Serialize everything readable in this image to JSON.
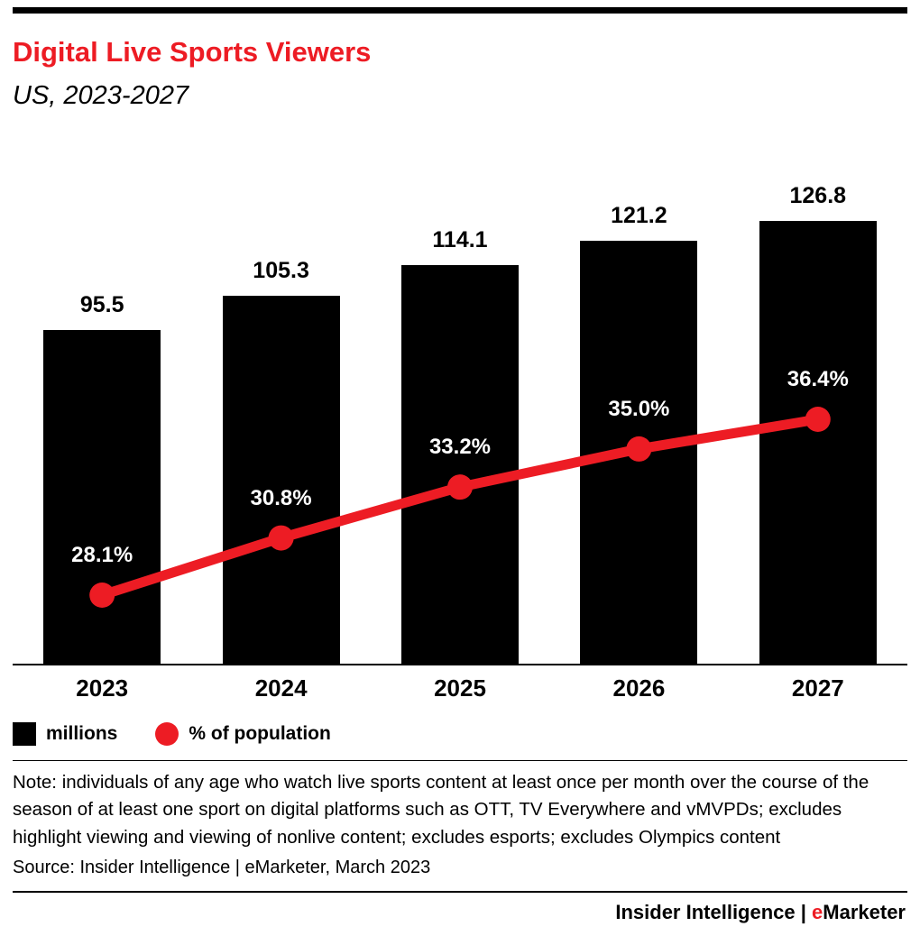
{
  "header": {
    "title": "Digital Live Sports Viewers",
    "subtitle": "US, 2023-2027"
  },
  "chart_data": {
    "type": "bar",
    "categories": [
      "2023",
      "2024",
      "2025",
      "2026",
      "2027"
    ],
    "series": [
      {
        "name": "millions",
        "type": "bar",
        "values": [
          95.5,
          105.3,
          114.1,
          121.2,
          126.8
        ],
        "color": "#000000"
      },
      {
        "name": "% of population",
        "type": "line",
        "values": [
          28.1,
          30.8,
          33.2,
          35.0,
          36.4
        ],
        "color": "#ed1c24"
      }
    ],
    "bar_labels": [
      "95.5",
      "105.3",
      "114.1",
      "121.2",
      "126.8"
    ],
    "line_labels": [
      "28.1%",
      "30.8%",
      "33.2%",
      "35.0%",
      "36.4%"
    ],
    "title": "Digital Live Sports Viewers",
    "subtitle": "US, 2023-2027",
    "xlabel": "",
    "ylabel": "",
    "grid": false,
    "legend_position": "bottom-left"
  },
  "legend": [
    {
      "label": "millions",
      "swatch": "square",
      "color": "#000000"
    },
    {
      "label": "% of population",
      "swatch": "circle",
      "color": "#ed1c24"
    }
  ],
  "note": "Note: individuals of any age who watch live sports content at least once per month over the course of the season of at least one sport on digital platforms such as OTT, TV Everywhere and vMVPDs; excludes highlight viewing and viewing of nonlive content; excludes esports; excludes Olympics content",
  "source": "Source: Insider Intelligence | eMarketer, March 2023",
  "footer": {
    "brand": "Insider Intelligence",
    "separator": " | ",
    "emarketer_e": "e",
    "emarketer_rest": "Marketer"
  },
  "colors": {
    "accent_red": "#ed1c24",
    "bar_black": "#000000"
  }
}
